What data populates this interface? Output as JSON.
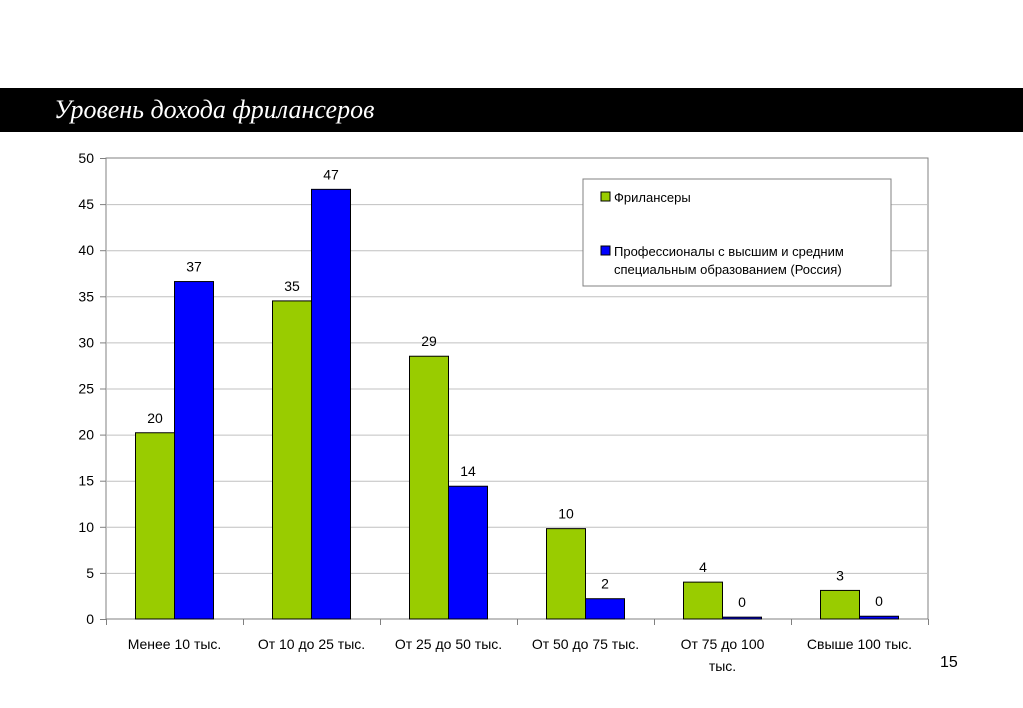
{
  "slide": {
    "title": "Уровень дохода фрилансеров",
    "page_number": "15"
  },
  "colors": {
    "series_freelancers": "#99cc00",
    "series_professionals": "#0000ff",
    "title_bar": "#000000"
  },
  "chart_data": {
    "type": "bar",
    "title": "",
    "xlabel": "",
    "ylabel": "",
    "ylim": [
      0,
      50
    ],
    "yticks": [
      0,
      5,
      10,
      15,
      20,
      25,
      30,
      35,
      40,
      45,
      50
    ],
    "grid": true,
    "legend_position": "top-right",
    "categories": [
      [
        "Менее 10 тыс."
      ],
      [
        "От 10 до 25 тыс."
      ],
      [
        "От 25 до 50 тыс."
      ],
      [
        "От 50 до 75 тыс."
      ],
      [
        "От 75 до 100",
        "тыс."
      ],
      [
        "Свыше 100 тыс."
      ]
    ],
    "series": [
      {
        "name": "Фрилансеры",
        "legend_lines": [
          "Фрилансеры"
        ],
        "values": [
          20.2,
          34.5,
          28.5,
          9.8,
          4.0,
          3.1
        ],
        "labels": [
          "20",
          "35",
          "29",
          "10",
          "4",
          "3"
        ]
      },
      {
        "name": "Профессионалы с высшим и средним специальным образованием (Россия)",
        "legend_lines": [
          "Профессионалы с высшим и средним",
          "специальным образованием (Россия)"
        ],
        "values": [
          36.6,
          46.6,
          14.4,
          2.2,
          0.2,
          0.3
        ],
        "labels": [
          "37",
          "47",
          "14",
          "2",
          "0",
          "0"
        ]
      }
    ]
  }
}
